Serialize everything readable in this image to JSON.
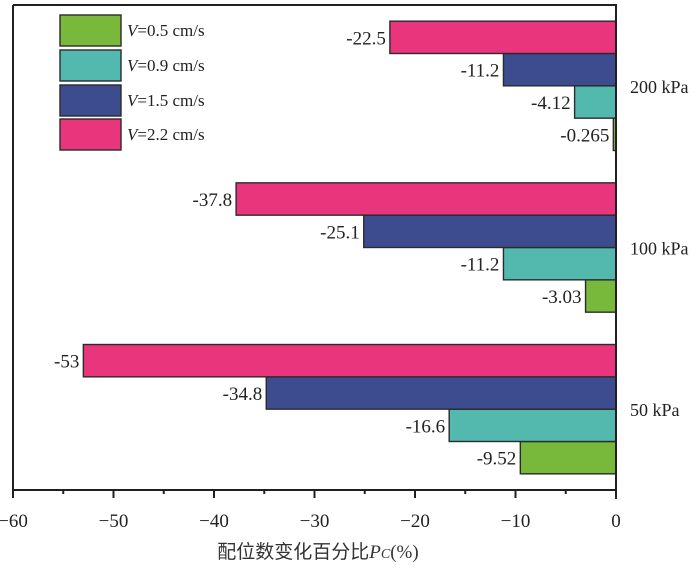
{
  "chart_data": {
    "type": "bar",
    "orientation": "horizontal",
    "title": "",
    "xlabel": "配位数变化百分比",
    "xlabel_symbol": "P",
    "xlabel_subscript": "C",
    "xlabel_unit": "(%)",
    "ylabel": "",
    "xlim": [
      -60,
      0
    ],
    "x_ticks": [
      -60,
      -50,
      -40,
      -30,
      -20,
      -10,
      0
    ],
    "x_tick_labels": [
      "−60",
      "−50",
      "−40",
      "−30",
      "−20",
      "−10",
      "0"
    ],
    "x_minor_ticks": [
      -55,
      -45,
      -35,
      -25,
      -15,
      -5
    ],
    "categories": [
      "50 kPa",
      "100 kPa",
      "200 kPa"
    ],
    "series": [
      {
        "name": "V=0.5 cm/s",
        "var": "V",
        "label_rest": "=0.5 cm/s",
        "color": "#78b83b",
        "values": [
          -9.52,
          -3.03,
          -0.265
        ],
        "labels": [
          "-9.52",
          "-3.03",
          "-0.265"
        ]
      },
      {
        "name": "V=0.9 cm/s",
        "var": "V",
        "label_rest": "=0.9 cm/s",
        "color": "#53b8ae",
        "values": [
          -16.6,
          -11.2,
          -4.12
        ],
        "labels": [
          "-16.6",
          "-11.2",
          "-4.12"
        ]
      },
      {
        "name": "V=1.5 cm/s",
        "var": "V",
        "label_rest": "=1.5 cm/s",
        "color": "#3d4c8f",
        "values": [
          -34.8,
          -25.1,
          -11.2
        ],
        "labels": [
          "-34.8",
          "-25.1",
          "-11.2"
        ]
      },
      {
        "name": "V=2.2 cm/s",
        "var": "V",
        "label_rest": "=2.2 cm/s",
        "color": "#e8357b",
        "values": [
          -53,
          -37.8,
          -22.5
        ],
        "labels": [
          "-53",
          "-37.8",
          "-22.5"
        ]
      }
    ],
    "legend_position": "top-left",
    "grid": false
  }
}
